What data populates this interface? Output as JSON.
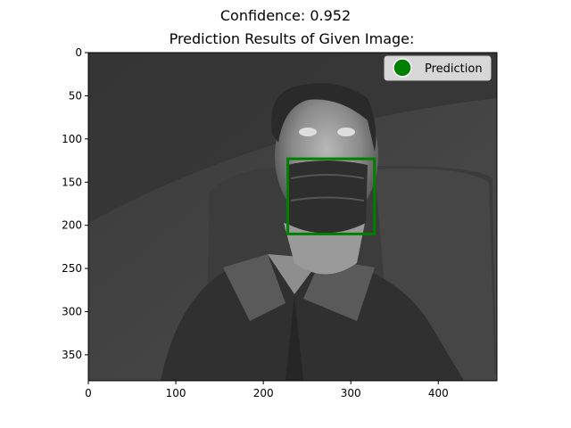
{
  "suptitle": "Confidence: 0.952",
  "chart_data": {
    "type": "scatter",
    "title": "Prediction Results of Given Image:",
    "xlabel": "",
    "ylabel": "",
    "xlim": [
      0,
      467
    ],
    "ylim": [
      380,
      0
    ],
    "x_ticks": [
      0,
      100,
      200,
      300,
      400
    ],
    "y_ticks": [
      0,
      50,
      100,
      150,
      200,
      250,
      300,
      350
    ],
    "background_image": "grayscale-inverted-photo-of-man-wearing-mask-seated-in-chair",
    "bounding_box": {
      "label": "Prediction",
      "x_min": 228,
      "y_min": 123,
      "x_max": 327,
      "y_max": 210,
      "color": "#008000",
      "confidence": 0.952
    },
    "legend": {
      "placement": "top-right",
      "entries": [
        {
          "label": "Prediction",
          "color": "#008000",
          "marker": "circle"
        }
      ]
    }
  }
}
